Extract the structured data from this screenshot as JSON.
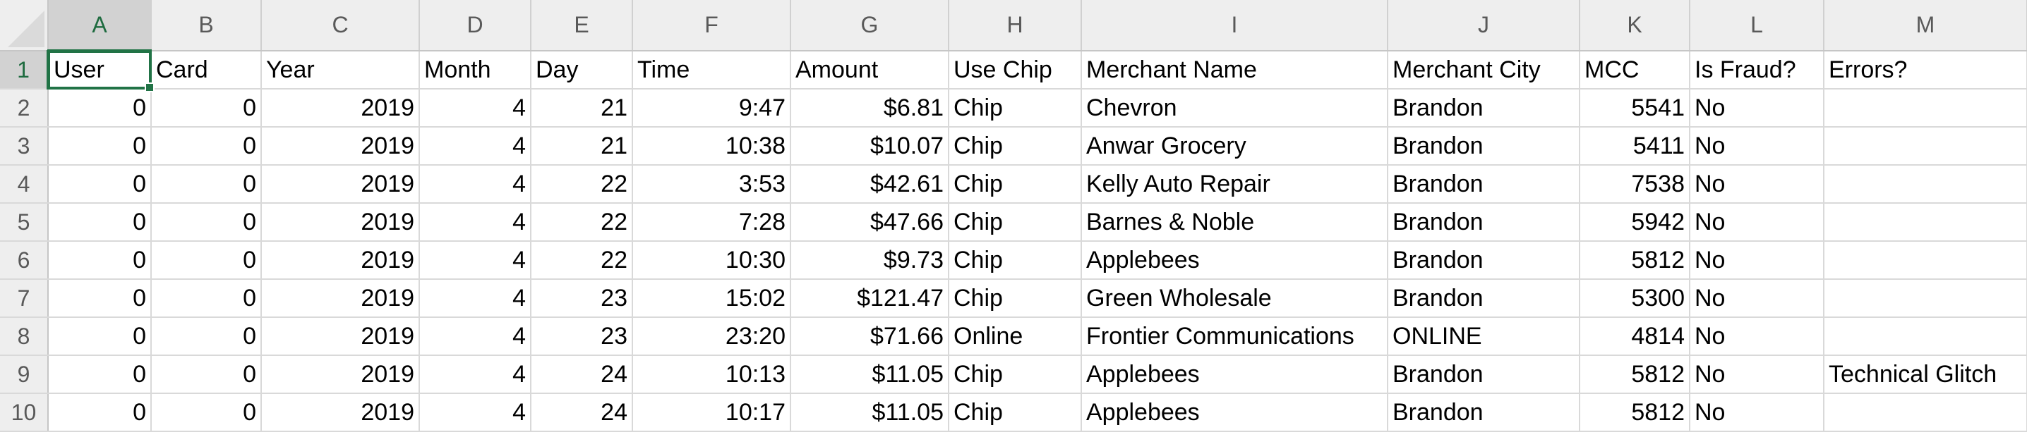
{
  "columns": [
    "A",
    "B",
    "C",
    "D",
    "E",
    "F",
    "G",
    "H",
    "I",
    "J",
    "K",
    "L",
    "M"
  ],
  "rows": [
    {
      "num": "1",
      "cells": [
        "User",
        "Card",
        "Year",
        "Month",
        "Day",
        "Time",
        "Amount",
        "Use Chip",
        "Merchant Name",
        "Merchant City",
        "MCC",
        "Is Fraud?",
        "Errors?"
      ]
    },
    {
      "num": "2",
      "cells": [
        "0",
        "0",
        "2019",
        "4",
        "21",
        "9:47",
        "$6.81",
        "Chip",
        "Chevron",
        "Brandon",
        "5541",
        "No",
        ""
      ]
    },
    {
      "num": "3",
      "cells": [
        "0",
        "0",
        "2019",
        "4",
        "21",
        "10:38",
        "$10.07",
        "Chip",
        "Anwar Grocery",
        "Brandon",
        "5411",
        "No",
        ""
      ]
    },
    {
      "num": "4",
      "cells": [
        "0",
        "0",
        "2019",
        "4",
        "22",
        "3:53",
        "$42.61",
        "Chip",
        "Kelly Auto Repair",
        "Brandon",
        "7538",
        "No",
        ""
      ]
    },
    {
      "num": "5",
      "cells": [
        "0",
        "0",
        "2019",
        "4",
        "22",
        "7:28",
        "$47.66",
        "Chip",
        "Barnes & Noble",
        "Brandon",
        "5942",
        "No",
        ""
      ]
    },
    {
      "num": "6",
      "cells": [
        "0",
        "0",
        "2019",
        "4",
        "22",
        "10:30",
        "$9.73",
        "Chip",
        "Applebees",
        "Brandon",
        "5812",
        "No",
        ""
      ]
    },
    {
      "num": "7",
      "cells": [
        "0",
        "0",
        "2019",
        "4",
        "23",
        "15:02",
        "$121.47",
        "Chip",
        "Green Wholesale",
        "Brandon",
        "5300",
        "No",
        ""
      ]
    },
    {
      "num": "8",
      "cells": [
        "0",
        "0",
        "2019",
        "4",
        "23",
        "23:20",
        "$71.66",
        "Online",
        "Frontier Communications",
        " ONLINE",
        "4814",
        "No",
        ""
      ]
    },
    {
      "num": "9",
      "cells": [
        "0",
        "0",
        "2019",
        "4",
        "24",
        "10:13",
        "$11.05",
        "Chip",
        "Applebees",
        "Brandon",
        "5812",
        "No",
        "Technical Glitch"
      ]
    },
    {
      "num": "10",
      "cells": [
        "0",
        "0",
        "2019",
        "4",
        "24",
        "10:17",
        "$11.05",
        "Chip",
        "Applebees",
        "Brandon",
        "5812",
        "No",
        ""
      ]
    }
  ],
  "selected_cell": "A1",
  "colors": {
    "accent": "#217346",
    "header_bg": "#eeeeee",
    "gridline": "#d9d9d9"
  }
}
